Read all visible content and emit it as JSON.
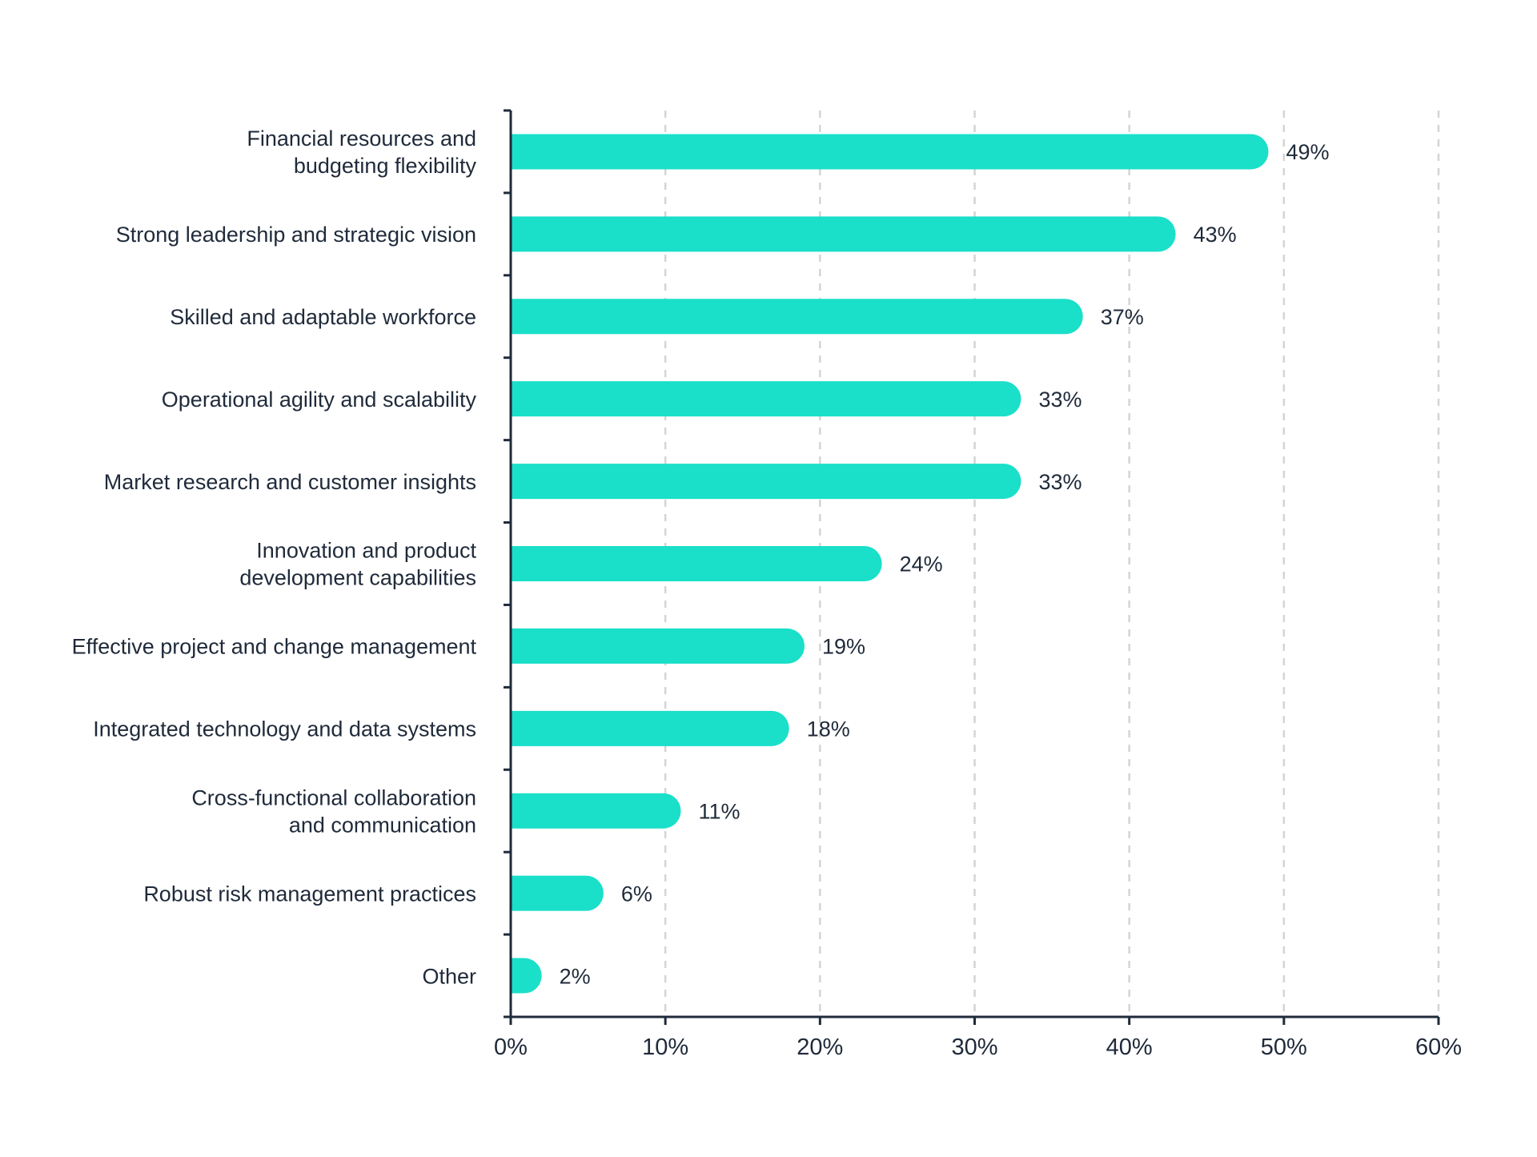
{
  "chart_data": {
    "type": "bar",
    "orientation": "horizontal",
    "categories": [
      [
        "Financial resources and",
        "budgeting flexibility"
      ],
      [
        "Strong leadership and strategic vision"
      ],
      [
        "Skilled and adaptable workforce"
      ],
      [
        "Operational agility and scalability"
      ],
      [
        "Market research and customer insights"
      ],
      [
        "Innovation and product",
        "development capabilities"
      ],
      [
        "Effective project and change management"
      ],
      [
        "Integrated technology and data systems"
      ],
      [
        "Cross-functional collaboration",
        "and communication"
      ],
      [
        "Robust risk management practices"
      ],
      [
        "Other"
      ]
    ],
    "values": [
      49,
      43,
      37,
      33,
      33,
      24,
      19,
      18,
      11,
      6,
      2
    ],
    "value_labels": [
      "49%",
      "43%",
      "37%",
      "33%",
      "33%",
      "24%",
      "19%",
      "18%",
      "11%",
      "6%",
      "2%"
    ],
    "x_ticks": [
      0,
      10,
      20,
      30,
      40,
      50,
      60
    ],
    "x_tick_labels": [
      "0%",
      "10%",
      "20%",
      "30%",
      "40%",
      "50%",
      "60%"
    ],
    "xlim": [
      0,
      60
    ],
    "title": "",
    "xlabel": "",
    "ylabel": "",
    "grid": "vertical dashed",
    "legend": "none",
    "colors": {
      "bar": "#1adfc9",
      "axis": "#1f2a3a",
      "text": "#1f2a3a",
      "grid": "#d4d4d4"
    }
  }
}
